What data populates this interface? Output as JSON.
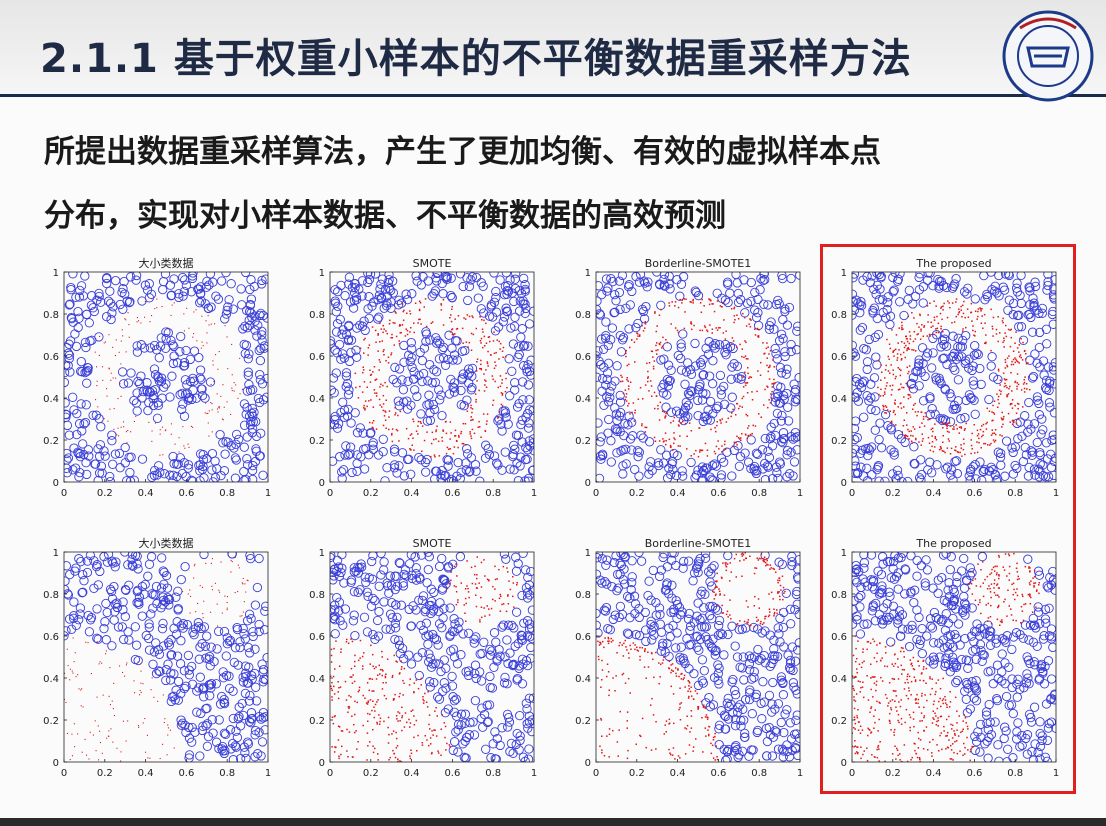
{
  "title": "2.1.1 基于权重小样本的不平衡数据重采样方法",
  "subtitle_lines": [
    "所提出数据重采样算法，产生了更加均衡、有效的虚拟样本点",
    "分布，实现对小样本数据、不平衡数据的高效预测"
  ],
  "logo_icon": "university-seal-icon",
  "colors": {
    "majority": "#3a3fd8",
    "minority": "#e01818",
    "highlight": "#e02020"
  },
  "chart_data": [
    {
      "type": "scatter",
      "title": "大小类数据",
      "distribution": "ring",
      "method": "original",
      "xlim": [
        0,
        1
      ],
      "ylim": [
        0,
        1
      ],
      "xticks": [
        "0",
        "0.2",
        "0.4",
        "0.6",
        "0.8",
        "1"
      ],
      "yticks": [
        "0",
        "0.2",
        "0.4",
        "0.6",
        "0.8",
        "1"
      ],
      "series": []
    },
    {
      "type": "scatter",
      "title": "SMOTE",
      "distribution": "ring",
      "method": "smote",
      "xlim": [
        0,
        1
      ],
      "ylim": [
        0,
        1
      ],
      "xticks": [
        "0",
        "0.2",
        "0.4",
        "0.6",
        "0.8",
        "1"
      ],
      "yticks": [
        "0",
        "0.2",
        "0.4",
        "0.6",
        "0.8",
        "1"
      ],
      "series": []
    },
    {
      "type": "scatter",
      "title": "Borderline-SMOTE1",
      "distribution": "ring",
      "method": "borderline",
      "xlim": [
        0,
        1
      ],
      "ylim": [
        0,
        1
      ],
      "xticks": [
        "0",
        "0.2",
        "0.4",
        "0.6",
        "0.8",
        "1"
      ],
      "yticks": [
        "0",
        "0.2",
        "0.4",
        "0.6",
        "0.8",
        "1"
      ],
      "series": []
    },
    {
      "type": "scatter",
      "title": "The proposed",
      "distribution": "ring",
      "method": "proposed",
      "xlim": [
        0,
        1
      ],
      "ylim": [
        0,
        1
      ],
      "xticks": [
        "0",
        "0.2",
        "0.4",
        "0.6",
        "0.8",
        "1"
      ],
      "yticks": [
        "0",
        "0.2",
        "0.4",
        "0.6",
        "0.8",
        "1"
      ],
      "series": []
    },
    {
      "type": "scatter",
      "title": "大小类数据",
      "distribution": "quarter-circle",
      "method": "original",
      "xlim": [
        0,
        1
      ],
      "ylim": [
        0,
        1
      ],
      "xticks": [
        "0",
        "0.2",
        "0.4",
        "0.6",
        "0.8",
        "1"
      ],
      "yticks": [
        "0",
        "0.2",
        "0.4",
        "0.6",
        "0.8",
        "1"
      ],
      "series": []
    },
    {
      "type": "scatter",
      "title": "SMOTE",
      "distribution": "quarter-circle",
      "method": "smote",
      "xlim": [
        0,
        1
      ],
      "ylim": [
        0,
        1
      ],
      "xticks": [
        "0",
        "0.2",
        "0.4",
        "0.6",
        "0.8",
        "1"
      ],
      "yticks": [
        "0",
        "0.2",
        "0.4",
        "0.6",
        "0.8",
        "1"
      ],
      "series": []
    },
    {
      "type": "scatter",
      "title": "Borderline-SMOTE1",
      "distribution": "quarter-circle",
      "method": "borderline",
      "xlim": [
        0,
        1
      ],
      "ylim": [
        0,
        1
      ],
      "xticks": [
        "0",
        "0.2",
        "0.4",
        "0.6",
        "0.8",
        "1"
      ],
      "yticks": [
        "0",
        "0.2",
        "0.4",
        "0.6",
        "0.8",
        "1"
      ],
      "series": []
    },
    {
      "type": "scatter",
      "title": "The proposed",
      "distribution": "quarter-circle",
      "method": "proposed",
      "xlim": [
        0,
        1
      ],
      "ylim": [
        0,
        1
      ],
      "xticks": [
        "0",
        "0.2",
        "0.4",
        "0.6",
        "0.8",
        "1"
      ],
      "yticks": [
        "0",
        "0.2",
        "0.4",
        "0.6",
        "0.8",
        "1"
      ],
      "series": []
    }
  ]
}
